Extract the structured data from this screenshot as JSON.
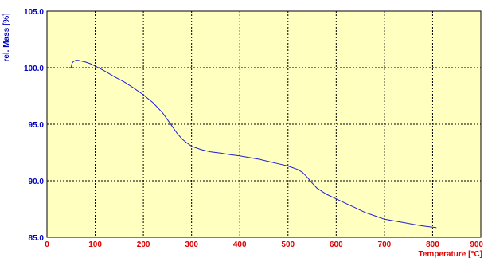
{
  "chart_data": {
    "type": "line",
    "xlabel": "Temperature  [°C]",
    "ylabel": "rel. Mass  [%]",
    "xlim": [
      0,
      900
    ],
    "ylim": [
      85,
      105
    ],
    "x_ticks": [
      "0",
      "100",
      "200",
      "300",
      "400",
      "500",
      "600",
      "700",
      "800",
      "900"
    ],
    "y_ticks": [
      "85.0",
      "90.0",
      "95.0",
      "100.0",
      "105.0"
    ],
    "grid": true,
    "colors": {
      "plot_background": "#ffffc0",
      "line": "#2020d0",
      "grid": "#000000",
      "x_labels": "#e00000",
      "y_labels": "#0000c0"
    },
    "series": [
      {
        "x": [
          50,
          52,
          55,
          60,
          65,
          70,
          80,
          90,
          100,
          120,
          140,
          160,
          180,
          200,
          220,
          240,
          250,
          260,
          270,
          280,
          290,
          300,
          320,
          340,
          360,
          380,
          400,
          420,
          440,
          460,
          480,
          500,
          520,
          530,
          540,
          550,
          560,
          580,
          600,
          620,
          640,
          660,
          680,
          700,
          720,
          740,
          760,
          780,
          800,
          808
        ],
        "y": [
          100.0,
          100.4,
          100.55,
          100.65,
          100.65,
          100.6,
          100.5,
          100.35,
          100.15,
          99.7,
          99.2,
          98.75,
          98.2,
          97.6,
          96.9,
          96.0,
          95.4,
          94.8,
          94.2,
          93.7,
          93.35,
          93.05,
          92.75,
          92.55,
          92.45,
          92.3,
          92.2,
          92.05,
          91.9,
          91.7,
          91.5,
          91.3,
          91.0,
          90.75,
          90.3,
          89.8,
          89.35,
          88.8,
          88.4,
          88.0,
          87.6,
          87.2,
          86.9,
          86.6,
          86.45,
          86.3,
          86.15,
          86.0,
          85.9,
          85.85
        ]
      }
    ]
  }
}
